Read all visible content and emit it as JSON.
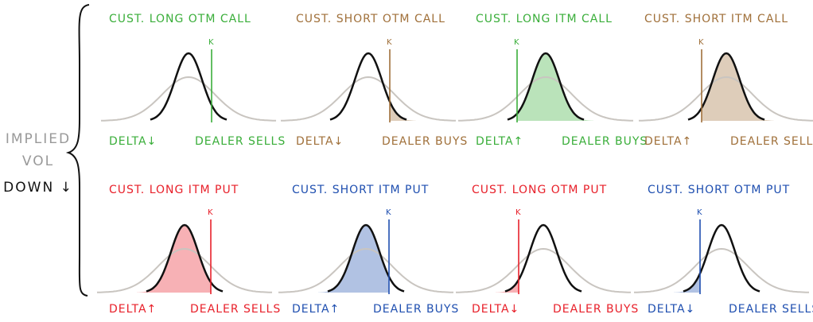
{
  "side_label": {
    "line1": "IMPLIED",
    "line2": "VOL",
    "line3": "DOWN ↓"
  },
  "colors": {
    "green": "#3aae3a",
    "brown": "#a0703a",
    "red": "#e8202a",
    "blue": "#1f4fb0",
    "black_curve": "#111111",
    "gray_curve": "#c9c5c0"
  },
  "panels": [
    {
      "title": "CUST. LONG OTM CALL",
      "strike": "K",
      "delta": "DELTA↓",
      "dealer": "DEALER SELLS",
      "color": "#3aae3a",
      "shaded_tail": "none"
    },
    {
      "title": "CUST. SHORT OTM CALL",
      "strike": "K",
      "delta": "DELTA↓",
      "dealer": "DEALER BUYS",
      "color": "#a0703a",
      "shaded_tail": "right"
    },
    {
      "title": "CUST. LONG ITM CALL",
      "strike": "K",
      "delta": "DELTA↑",
      "dealer": "DEALER BUYS",
      "color": "#3aae3a",
      "shaded_tail": "right"
    },
    {
      "title": "CUST. SHORT ITM CALL",
      "strike": "K",
      "delta": "DELTA↑",
      "dealer": "DEALER SELLS",
      "color": "#a0703a",
      "shaded_tail": "right"
    },
    {
      "title": "CUST. LONG ITM PUT",
      "strike": "K",
      "delta": "DELTA↑",
      "dealer": "DEALER SELLS",
      "color": "#e8202a",
      "shaded_tail": "left"
    },
    {
      "title": "CUST. SHORT ITM PUT",
      "strike": "K",
      "delta": "DELTA↑",
      "dealer": "DEALER BUYS",
      "color": "#1f4fb0",
      "shaded_tail": "left"
    },
    {
      "title": "CUST. LONG OTM PUT",
      "strike": "K",
      "delta": "DELTA↓",
      "dealer": "DEALER BUYS",
      "color": "#e8202a",
      "shaded_tail": "left"
    },
    {
      "title": "CUST. SHORT OTM PUT",
      "strike": "K",
      "delta": "DELTA↓",
      "dealer": "DEALER SELLS",
      "color": "#1f4fb0",
      "shaded_tail": "left"
    }
  ]
}
